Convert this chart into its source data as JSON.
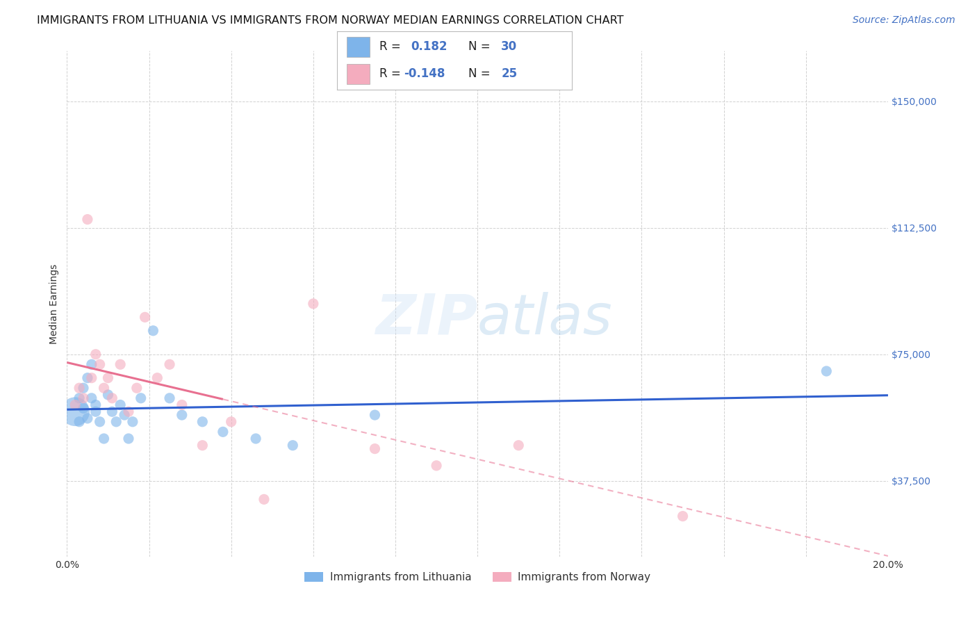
{
  "title": "IMMIGRANTS FROM LITHUANIA VS IMMIGRANTS FROM NORWAY MEDIAN EARNINGS CORRELATION CHART",
  "source_text": "Source: ZipAtlas.com",
  "ylabel": "Median Earnings",
  "xlim": [
    0.0,
    0.2
  ],
  "ylim": [
    15000,
    165000
  ],
  "yticks": [
    37500,
    75000,
    112500,
    150000
  ],
  "ytick_labels": [
    "$37,500",
    "$75,000",
    "$112,500",
    "$150,000"
  ],
  "background_color": "#ffffff",
  "grid_color": "#cccccc",
  "watermark_text": "ZIPatlas",
  "blue_color": "#7EB4EA",
  "pink_color": "#F4ACBE",
  "line_blue": "#3060CF",
  "line_pink": "#E87090",
  "lit_x": [
    0.002,
    0.003,
    0.003,
    0.004,
    0.004,
    0.005,
    0.005,
    0.006,
    0.006,
    0.007,
    0.007,
    0.008,
    0.009,
    0.01,
    0.011,
    0.012,
    0.013,
    0.014,
    0.015,
    0.016,
    0.018,
    0.021,
    0.025,
    0.028,
    0.033,
    0.038,
    0.046,
    0.055,
    0.075,
    0.185
  ],
  "lit_y": [
    58000,
    62000,
    55000,
    65000,
    59000,
    68000,
    56000,
    62000,
    72000,
    60000,
    58000,
    55000,
    50000,
    63000,
    58000,
    55000,
    60000,
    57000,
    50000,
    55000,
    62000,
    82000,
    62000,
    57000,
    55000,
    52000,
    50000,
    48000,
    57000,
    70000
  ],
  "lit_sizes": [
    120,
    120,
    120,
    120,
    120,
    120,
    120,
    120,
    120,
    120,
    120,
    120,
    120,
    120,
    120,
    120,
    120,
    120,
    120,
    120,
    120,
    120,
    120,
    120,
    120,
    120,
    120,
    120,
    120,
    120
  ],
  "lit_big_idx": 0,
  "lit_big_size": 900,
  "nor_x": [
    0.002,
    0.003,
    0.004,
    0.005,
    0.006,
    0.007,
    0.008,
    0.009,
    0.01,
    0.011,
    0.013,
    0.015,
    0.017,
    0.019,
    0.022,
    0.025,
    0.028,
    0.033,
    0.04,
    0.048,
    0.06,
    0.075,
    0.09,
    0.11,
    0.15
  ],
  "nor_y": [
    60000,
    65000,
    62000,
    115000,
    68000,
    75000,
    72000,
    65000,
    68000,
    62000,
    72000,
    58000,
    65000,
    86000,
    68000,
    72000,
    60000,
    48000,
    55000,
    32000,
    90000,
    47000,
    42000,
    48000,
    27000
  ],
  "nor_sizes": [
    120,
    120,
    120,
    120,
    120,
    120,
    120,
    120,
    120,
    120,
    120,
    120,
    120,
    120,
    120,
    120,
    120,
    120,
    120,
    120,
    120,
    120,
    120,
    120,
    120
  ],
  "title_fontsize": 11.5,
  "axis_label_fontsize": 10,
  "tick_fontsize": 10,
  "source_fontsize": 10
}
